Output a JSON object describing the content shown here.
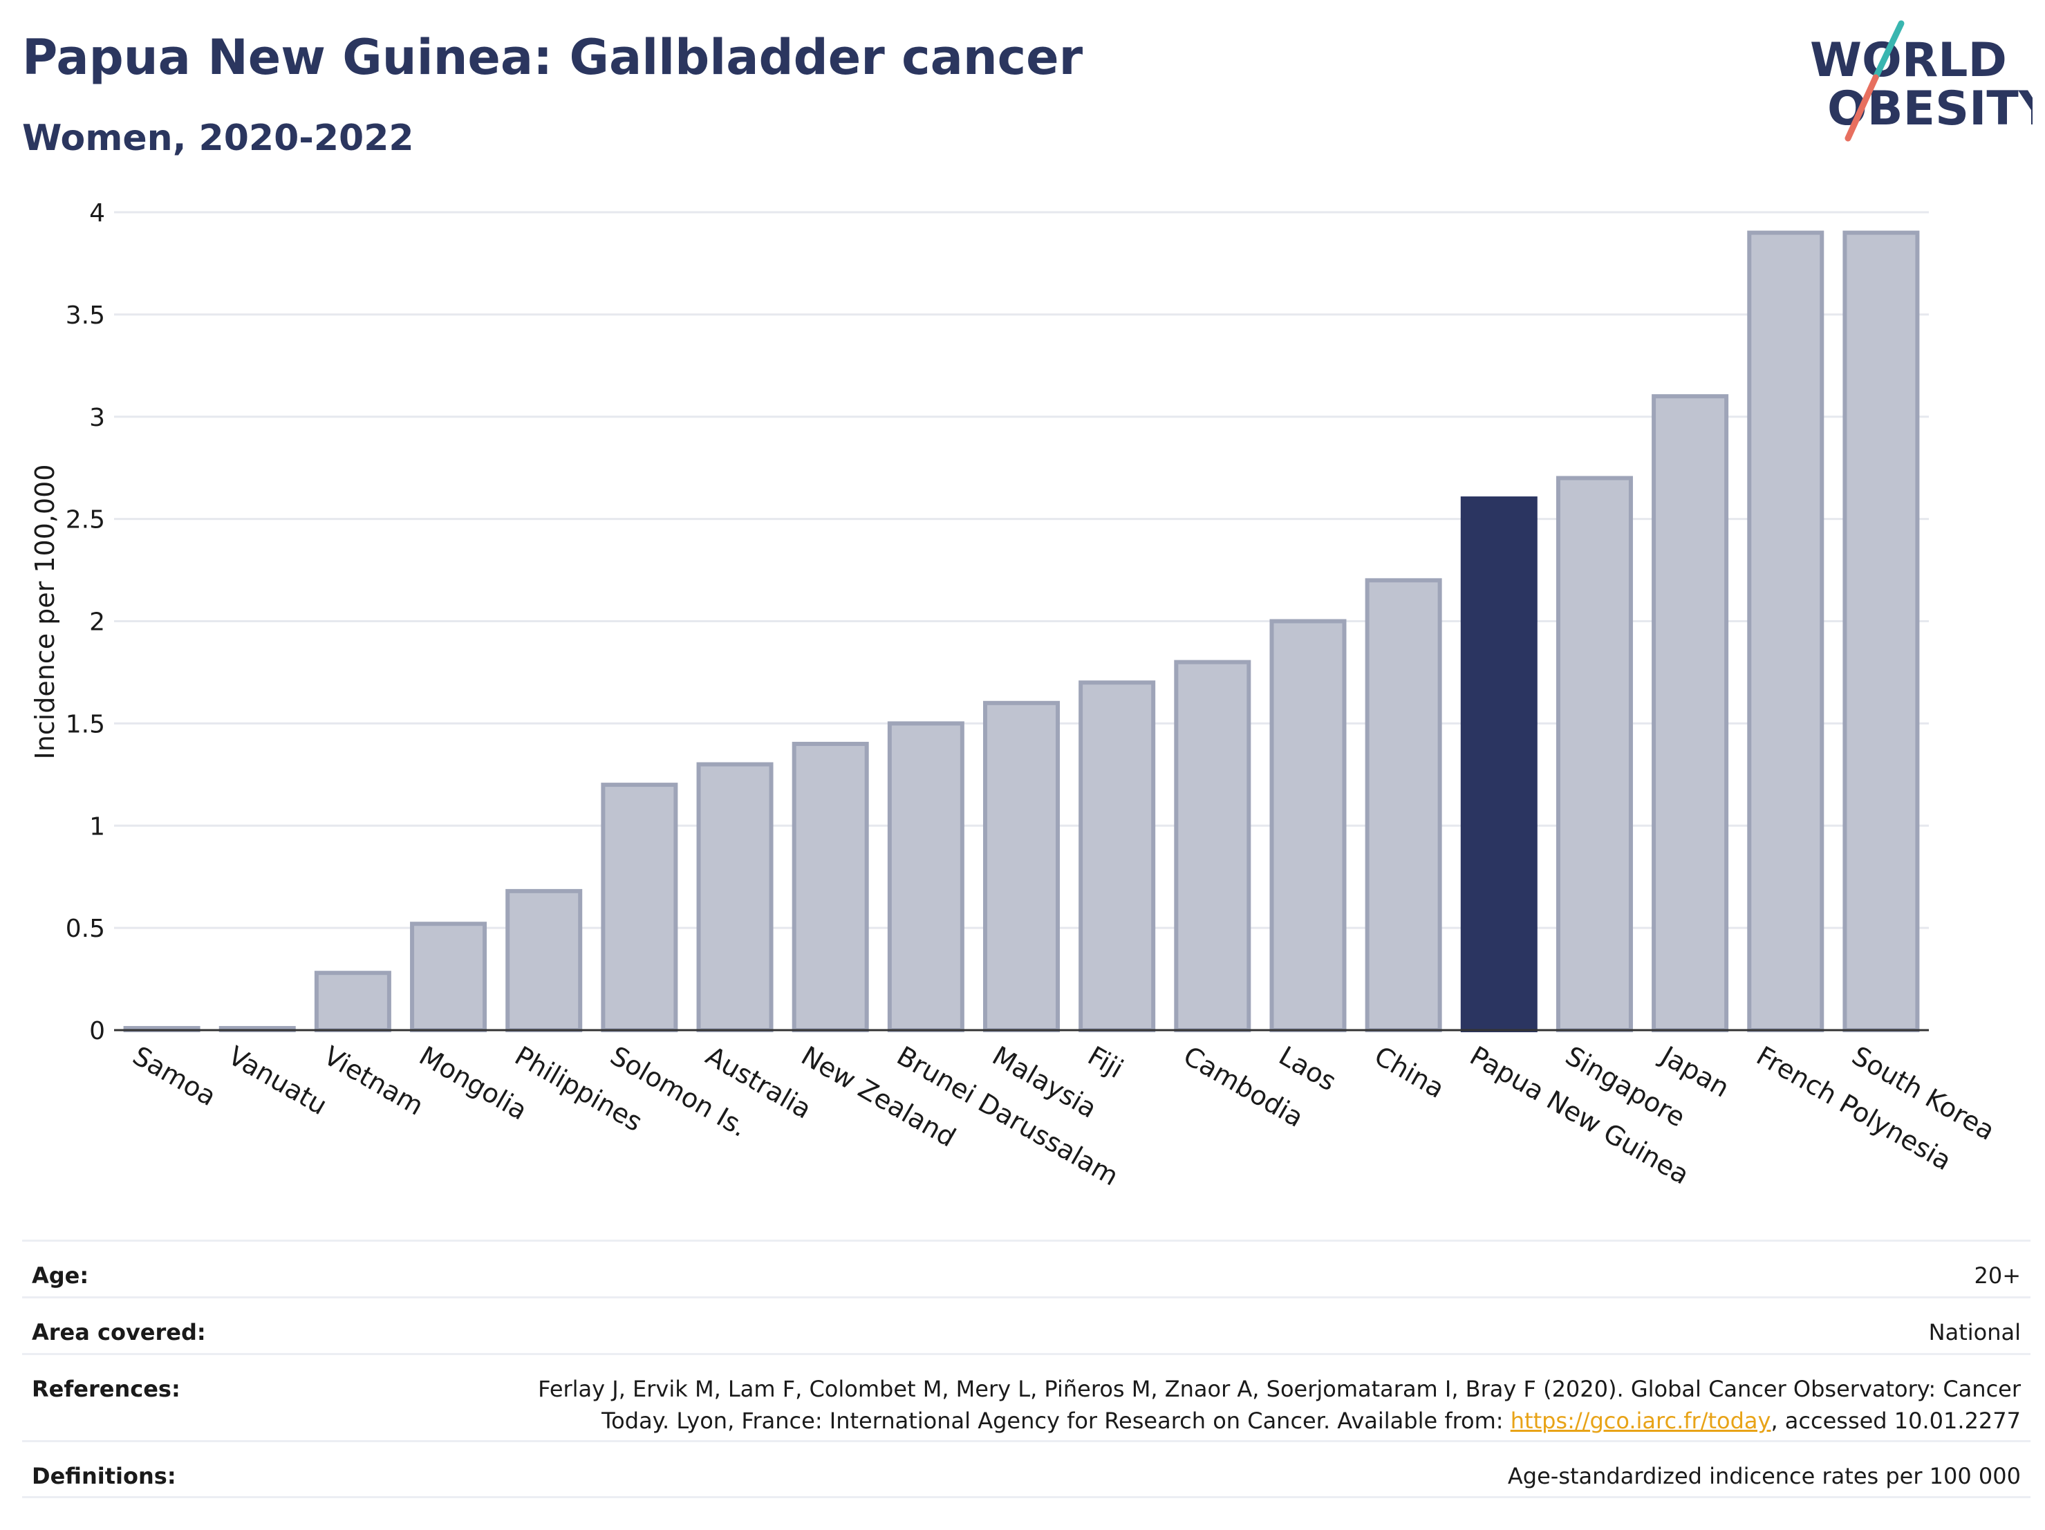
{
  "header": {
    "title": "Papua New Guinea: Gallbladder cancer",
    "subtitle": "Women, 2020-2022"
  },
  "logo": {
    "line1": "WORLD",
    "line2": "OBESITY",
    "accent_colors": [
      "#39b6b0",
      "#e76f5f"
    ]
  },
  "colors": {
    "highlight": "#2b3561",
    "bar_fill": "#bfc3d0",
    "bar_stroke": "#9ea4b8",
    "text": "#2b365f",
    "link": "#e8a317"
  },
  "chart_data": {
    "type": "bar",
    "title": "Papua New Guinea: Gallbladder cancer",
    "subtitle": "Women, 2020-2022",
    "xlabel": "",
    "ylabel": "Incidence per 100,000",
    "ylim": [
      0,
      4
    ],
    "yticks": [
      0,
      0.5,
      1,
      1.5,
      2,
      2.5,
      3,
      3.5,
      4
    ],
    "ytick_labels": [
      "0",
      "0.5",
      "1",
      "1.5",
      "2",
      "2.5",
      "3",
      "3.5",
      "4"
    ],
    "grid": true,
    "highlight": "Papua New Guinea",
    "categories": [
      "Samoa",
      "Vanuatu",
      "Vietnam",
      "Mongolia",
      "Philippines",
      "Solomon Is.",
      "Australia",
      "New Zealand",
      "Brunei Darussalam",
      "Malaysia",
      "Fiji",
      "Cambodia",
      "Laos",
      "China",
      "Papua New Guinea",
      "Singapore",
      "Japan",
      "French Polynesia",
      "South Korea"
    ],
    "values": [
      0.01,
      0.01,
      0.28,
      0.52,
      0.68,
      1.2,
      1.3,
      1.4,
      1.5,
      1.6,
      1.7,
      1.8,
      2.0,
      2.2,
      2.6,
      2.7,
      3.1,
      3.9,
      3.9
    ]
  },
  "meta": {
    "age": {
      "label": "Age:",
      "value": "20+"
    },
    "area": {
      "label": "Area covered:",
      "value": "National"
    },
    "references": {
      "label": "References:",
      "text_before": "Ferlay J, Ervik M, Lam F, Colombet M, Mery L, Piñeros M, Znaor A, Soerjomataram I, Bray F (2020). Global Cancer Observatory: Cancer Today. Lyon, France: International Agency for Research on Cancer. Available from: ",
      "link": "https://gco.iarc.fr/today",
      "text_after": ", accessed 10.01.2277"
    },
    "definitions": {
      "label": "Definitions:",
      "value": "Age-standardized indicence rates per 100 000"
    }
  }
}
